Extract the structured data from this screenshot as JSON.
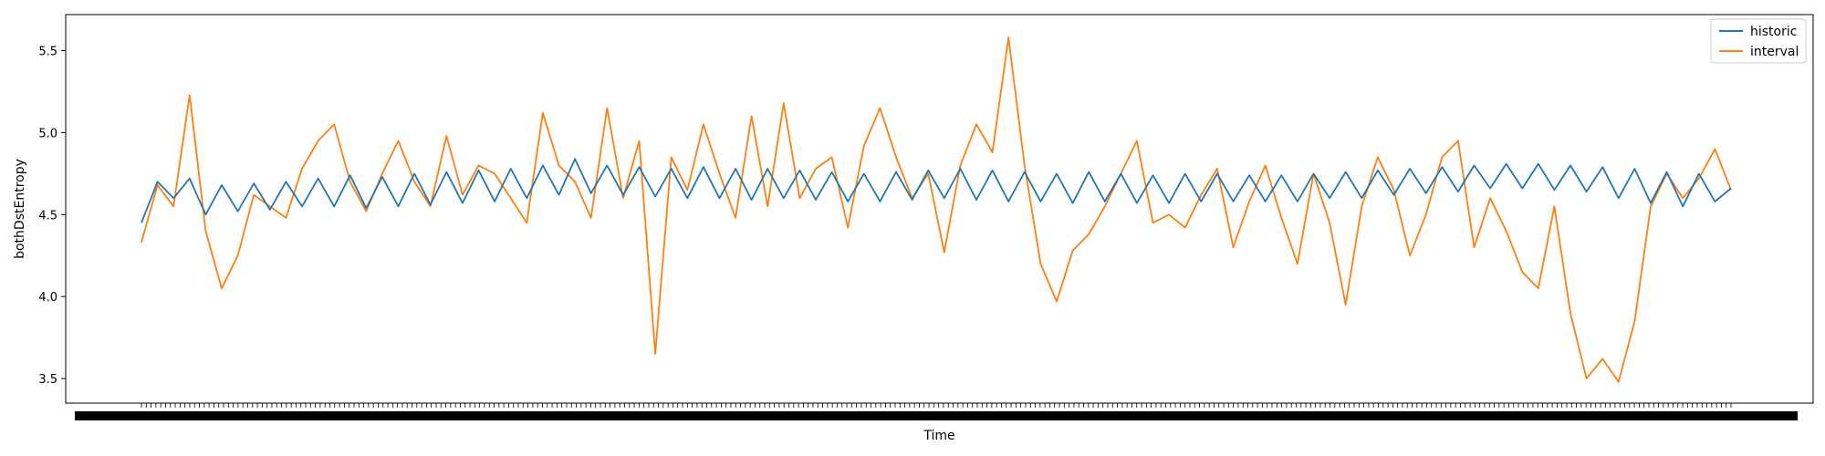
{
  "chart_data": {
    "type": "line",
    "title": "",
    "xlabel": "Time",
    "ylabel": "bothDstEntropy",
    "ylim": [
      3.35,
      5.72
    ],
    "y_ticks": [
      3.5,
      4.0,
      4.5,
      5.0,
      5.5
    ],
    "y_tick_labels": [
      "3.5",
      "4.0",
      "4.5",
      "5.0",
      "5.5"
    ],
    "x_tick_labels_note": "dense overlapping timestamp tick labels, illegible",
    "legend_position": "top-right",
    "x": [
      0,
      10,
      20,
      30,
      40,
      50,
      60,
      70,
      80,
      90,
      100,
      110,
      120,
      130,
      140,
      150,
      160,
      170,
      180,
      190,
      200,
      210,
      220,
      230,
      240,
      250,
      260,
      270,
      280,
      290,
      300,
      310,
      320,
      330,
      340,
      350,
      360,
      370,
      380,
      390,
      400,
      410,
      420,
      430,
      440,
      450,
      460,
      470,
      480,
      490,
      500,
      510,
      520,
      530,
      540,
      550,
      560,
      570,
      580,
      590,
      600,
      610,
      620,
      630,
      640,
      650,
      660,
      670,
      680,
      690,
      700,
      710,
      720,
      730,
      740,
      750,
      760,
      770,
      780,
      790,
      800,
      810,
      820,
      830,
      840,
      850,
      860,
      870,
      880,
      890,
      900,
      910,
      920,
      930,
      940,
      950,
      960,
      970,
      980,
      990
    ],
    "series": [
      {
        "name": "historic",
        "color": "#1f77b4",
        "values": [
          4.45,
          4.7,
          4.6,
          4.72,
          4.5,
          4.68,
          4.52,
          4.69,
          4.53,
          4.7,
          4.55,
          4.72,
          4.55,
          4.74,
          4.54,
          4.73,
          4.55,
          4.75,
          4.56,
          4.76,
          4.57,
          4.77,
          4.58,
          4.78,
          4.6,
          4.8,
          4.62,
          4.84,
          4.63,
          4.8,
          4.62,
          4.79,
          4.61,
          4.78,
          4.6,
          4.79,
          4.6,
          4.78,
          4.59,
          4.78,
          4.6,
          4.77,
          4.59,
          4.76,
          4.58,
          4.75,
          4.58,
          4.76,
          4.59,
          4.77,
          4.6,
          4.78,
          4.59,
          4.77,
          4.58,
          4.76,
          4.58,
          4.75,
          4.57,
          4.76,
          4.58,
          4.75,
          4.57,
          4.74,
          4.57,
          4.75,
          4.58,
          4.75,
          4.58,
          4.74,
          4.58,
          4.74,
          4.58,
          4.75,
          4.6,
          4.76,
          4.6,
          4.77,
          4.62,
          4.78,
          4.63,
          4.79,
          4.64,
          4.8,
          4.66,
          4.81,
          4.66,
          4.81,
          4.65,
          4.8,
          4.64,
          4.79,
          4.6,
          4.78,
          4.57,
          4.76,
          4.55,
          4.75,
          4.58,
          4.66
        ]
      },
      {
        "name": "interval",
        "color": "#ff7f0e",
        "values": [
          4.33,
          4.68,
          4.55,
          5.23,
          4.4,
          4.05,
          4.25,
          4.62,
          4.55,
          4.48,
          4.78,
          4.95,
          5.05,
          4.7,
          4.52,
          4.75,
          4.95,
          4.7,
          4.55,
          4.98,
          4.62,
          4.8,
          4.75,
          4.6,
          4.45,
          5.12,
          4.8,
          4.7,
          4.48,
          5.15,
          4.6,
          4.95,
          3.65,
          4.85,
          4.65,
          5.05,
          4.75,
          4.48,
          5.1,
          4.55,
          5.18,
          4.6,
          4.78,
          4.85,
          4.42,
          4.92,
          5.15,
          4.85,
          4.6,
          4.75,
          4.27,
          4.8,
          5.05,
          4.88,
          5.58,
          4.8,
          4.2,
          3.97,
          4.28,
          4.38,
          4.55,
          4.75,
          4.95,
          4.45,
          4.5,
          4.42,
          4.62,
          4.78,
          4.3,
          4.58,
          4.8,
          4.48,
          4.2,
          4.75,
          4.45,
          3.95,
          4.55,
          4.85,
          4.65,
          4.25,
          4.5,
          4.85,
          4.95,
          4.3,
          4.6,
          4.4,
          4.15,
          4.05,
          4.55,
          3.9,
          3.5,
          3.62,
          3.48,
          3.85,
          4.55,
          4.75,
          4.6,
          4.72,
          4.9,
          4.65
        ]
      }
    ]
  }
}
